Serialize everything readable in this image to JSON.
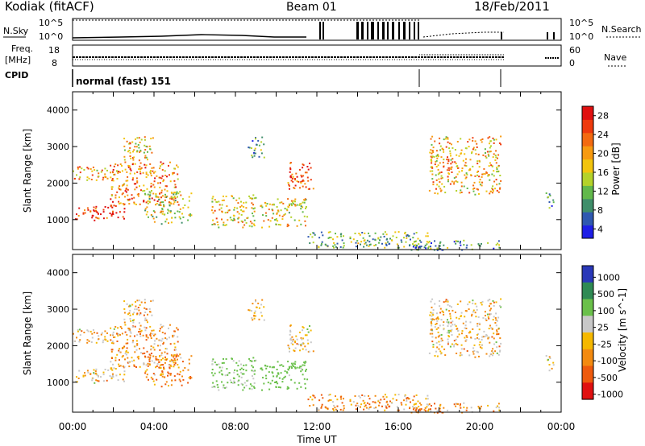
{
  "header": {
    "station": "Kodiak (fitACF)",
    "beam": "Beam 01",
    "date": "18/Feb/2011"
  },
  "left_labels": {
    "nsky": "N.Sky",
    "freq": "Freq.",
    "freq_unit": "[MHz]",
    "cpid": "CPID"
  },
  "right_labels": {
    "nsearch": "N.Search",
    "nave": "Nave"
  },
  "noise_panel": {
    "ticks": [
      "10^5",
      "10^0"
    ]
  },
  "freq_panel": {
    "left_ticks": [
      "18",
      "8"
    ],
    "right_ticks": [
      "60",
      "0"
    ]
  },
  "cpid_panel": {
    "text": "normal (fast) 151"
  },
  "x_axis": {
    "ticks": [
      "00:00",
      "04:00",
      "08:00",
      "12:00",
      "16:00",
      "20:00",
      "00:00"
    ],
    "label": "Time UT"
  },
  "chart_data": [
    {
      "type": "heatmap",
      "panel": "power",
      "ylabel": "Slant Range [km]",
      "y_ticks": [
        "1000",
        "2000",
        "3000",
        "4000"
      ],
      "ylim": [
        180,
        4500
      ],
      "xlim_hours": [
        0,
        24
      ],
      "colorbar_label": "Power [dB]",
      "colorbar_ticks": [
        "4",
        "8",
        "12",
        "16",
        "20",
        "24",
        "28"
      ],
      "colorbar_colors": [
        "#1e1ee6",
        "#2f58b0",
        "#3f8e6a",
        "#62b84b",
        "#b4d22a",
        "#f2c40d",
        "#f79a10",
        "#f36a10",
        "#ee3a0d",
        "#e01010"
      ],
      "scatter_regions": [
        {
          "t": [
            0.0,
            2.6
          ],
          "r": [
            1000,
            1400
          ],
          "v": 27
        },
        {
          "t": [
            0.0,
            2.2
          ],
          "r": [
            2100,
            2500
          ],
          "v": 20
        },
        {
          "t": [
            1.8,
            5.2
          ],
          "r": [
            1400,
            2600
          ],
          "v": 22
        },
        {
          "t": [
            2.5,
            4.0
          ],
          "r": [
            2600,
            3300
          ],
          "v": 18
        },
        {
          "t": [
            3.5,
            5.8
          ],
          "r": [
            900,
            1800
          ],
          "v": 15
        },
        {
          "t": [
            6.8,
            9.0
          ],
          "r": [
            800,
            1700
          ],
          "v": 18
        },
        {
          "t": [
            9.2,
            11.5
          ],
          "r": [
            800,
            1600
          ],
          "v": 17
        },
        {
          "t": [
            10.5,
            11.8
          ],
          "r": [
            1800,
            2600
          ],
          "v": 24
        },
        {
          "t": [
            8.6,
            9.4
          ],
          "r": [
            2700,
            3300
          ],
          "v": 10
        },
        {
          "t": [
            11.5,
            17.5
          ],
          "r": [
            250,
            700
          ],
          "v": 12
        },
        {
          "t": [
            17.5,
            21.0
          ],
          "r": [
            1700,
            3300
          ],
          "v": 19
        },
        {
          "t": [
            16.5,
            21.0
          ],
          "r": [
            180,
            450
          ],
          "v": 10
        },
        {
          "t": [
            23.2,
            23.6
          ],
          "r": [
            1300,
            1800
          ],
          "v": 8
        }
      ]
    },
    {
      "type": "heatmap",
      "panel": "velocity",
      "ylabel": "Slant Range [km]",
      "y_ticks": [
        "1000",
        "2000",
        "3000",
        "4000"
      ],
      "ylim": [
        180,
        4500
      ],
      "xlim_hours": [
        0,
        24
      ],
      "colorbar_label": "Velocity [m s^-1]",
      "colorbar_ticks": [
        "1000",
        "500",
        "100",
        "25",
        "-25",
        "-100",
        "-500",
        "-1000"
      ],
      "colorbar_colors": [
        "#2a38b8",
        "#2f8a54",
        "#6ac04a",
        "#c8c8c8",
        "#f5b800",
        "#f38a10",
        "#ee5a0d",
        "#e01010"
      ],
      "scatter_regions": [
        {
          "t": [
            0.0,
            2.6
          ],
          "r": [
            1000,
            1400
          ],
          "v": 0
        },
        {
          "t": [
            0.0,
            2.2
          ],
          "r": [
            2100,
            2500
          ],
          "v": 0
        },
        {
          "t": [
            1.8,
            5.2
          ],
          "r": [
            1400,
            2600
          ],
          "v": -30
        },
        {
          "t": [
            2.5,
            4.0
          ],
          "r": [
            2600,
            3300
          ],
          "v": 0
        },
        {
          "t": [
            3.5,
            5.8
          ],
          "r": [
            900,
            1800
          ],
          "v": -80
        },
        {
          "t": [
            6.8,
            9.0
          ],
          "r": [
            800,
            1700
          ],
          "v": 150
        },
        {
          "t": [
            9.2,
            11.5
          ],
          "r": [
            800,
            1600
          ],
          "v": 200
        },
        {
          "t": [
            10.5,
            11.8
          ],
          "r": [
            1800,
            2600
          ],
          "v": 0
        },
        {
          "t": [
            8.6,
            9.4
          ],
          "r": [
            2700,
            3300
          ],
          "v": 0
        },
        {
          "t": [
            11.5,
            17.5
          ],
          "r": [
            250,
            700
          ],
          "v": -60
        },
        {
          "t": [
            17.5,
            21.0
          ],
          "r": [
            1700,
            3300
          ],
          "v": 0
        },
        {
          "t": [
            16.5,
            21.0
          ],
          "r": [
            180,
            450
          ],
          "v": -40
        },
        {
          "t": [
            23.2,
            23.6
          ],
          "r": [
            1300,
            1800
          ],
          "v": 0
        }
      ]
    }
  ]
}
